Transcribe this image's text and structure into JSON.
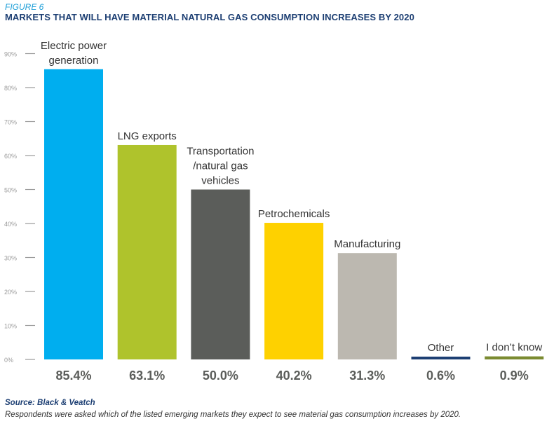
{
  "figure_label": "FIGURE 6",
  "title": "MARKETS THAT WILL HAVE MATERIAL NATURAL GAS CONSUMPTION INCREASES BY 2020",
  "source": "Source: Black & Veatch",
  "note": "Respondents were asked which of the listed emerging markets they expect to see material gas consumption increases by 2020.",
  "chart_data": {
    "type": "bar",
    "title": "MARKETS THAT WILL HAVE MATERIAL NATURAL GAS CONSUMPTION INCREASES BY 2020",
    "xlabel": "",
    "ylabel": "",
    "ylim": [
      0,
      90
    ],
    "grid": false,
    "categories": [
      [
        "Electric power",
        "generation"
      ],
      [
        "LNG exports"
      ],
      [
        "Transportation",
        "/natural gas",
        "vehicles"
      ],
      [
        "Petrochemicals"
      ],
      [
        "Manufacturing"
      ],
      [
        "Other"
      ],
      [
        "I don’t know"
      ]
    ],
    "values": [
      85.4,
      63.1,
      50.0,
      40.2,
      31.3,
      0.6,
      0.9
    ],
    "value_labels": [
      "85.4%",
      "63.1%",
      "50.0%",
      "40.2%",
      "31.3%",
      "0.6%",
      "0.9%"
    ],
    "colors": [
      "#00aeef",
      "#afc32c",
      "#5b5d5a",
      "#fed100",
      "#bcb8b0",
      "#1d3f73",
      "#7b8b31"
    ],
    "yticks": [
      0,
      10,
      20,
      30,
      40,
      50,
      60,
      70,
      80,
      90
    ],
    "ytick_labels": [
      "0%",
      "10%",
      "20%",
      "30%",
      "40%",
      "50%",
      "60%",
      "70%",
      "80%",
      "90%"
    ]
  }
}
